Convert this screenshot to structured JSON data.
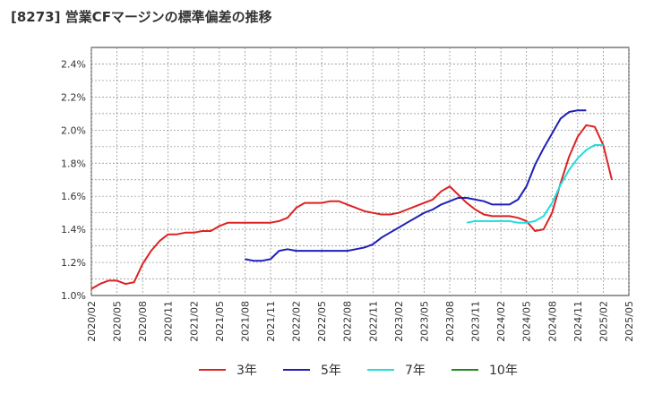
{
  "chart_data": {
    "type": "line",
    "title": "[8273]  営業CFマージンの標準偏差の推移",
    "xlabel": "",
    "ylabel": "",
    "ylim": [
      1.0,
      2.5
    ],
    "yticks": [
      1.0,
      1.2,
      1.4,
      1.6,
      1.8,
      2.0,
      2.2,
      2.4
    ],
    "ytick_labels": [
      "1.0%",
      "1.2%",
      "1.4%",
      "1.6%",
      "1.8%",
      "2.0%",
      "2.2%",
      "2.4%"
    ],
    "xticks": [
      "2020/02",
      "2020/05",
      "2020/08",
      "2020/11",
      "2021/02",
      "2021/05",
      "2021/08",
      "2021/11",
      "2022/02",
      "2022/05",
      "2022/08",
      "2022/11",
      "2023/02",
      "2023/05",
      "2023/08",
      "2023/11",
      "2024/02",
      "2024/05",
      "2024/08",
      "2024/11",
      "2025/02",
      "2025/05"
    ],
    "grid": true,
    "legend_position": "bottom",
    "series": [
      {
        "name": "3年",
        "color": "#dd2222",
        "start": "2020/02",
        "values": [
          1.04,
          1.07,
          1.09,
          1.09,
          1.07,
          1.08,
          1.19,
          1.27,
          1.33,
          1.37,
          1.37,
          1.38,
          1.38,
          1.39,
          1.39,
          1.42,
          1.44,
          1.44,
          1.44,
          1.44,
          1.44,
          1.44,
          1.45,
          1.47,
          1.53,
          1.56,
          1.56,
          1.56,
          1.57,
          1.57,
          1.55,
          1.53,
          1.51,
          1.5,
          1.49,
          1.49,
          1.5,
          1.52,
          1.54,
          1.56,
          1.58,
          1.63,
          1.66,
          1.61,
          1.56,
          1.52,
          1.49,
          1.48,
          1.48,
          1.48,
          1.47,
          1.45,
          1.39,
          1.4,
          1.5,
          1.68,
          1.84,
          1.96,
          2.03,
          2.02,
          1.91,
          1.7
        ]
      },
      {
        "name": "5年",
        "color": "#1f1fb8",
        "start": "2021/08",
        "values": [
          1.22,
          1.21,
          1.21,
          1.22,
          1.27,
          1.28,
          1.27,
          1.27,
          1.27,
          1.27,
          1.27,
          1.27,
          1.27,
          1.28,
          1.29,
          1.31,
          1.35,
          1.38,
          1.41,
          1.44,
          1.47,
          1.5,
          1.52,
          1.55,
          1.57,
          1.59,
          1.59,
          1.58,
          1.57,
          1.55,
          1.55,
          1.55,
          1.58,
          1.66,
          1.79,
          1.89,
          1.98,
          2.07,
          2.11,
          2.12,
          2.12
        ]
      },
      {
        "name": "7年",
        "color": "#22dddd",
        "start": "2023/10",
        "values": [
          1.44,
          1.45,
          1.45,
          1.45,
          1.45,
          1.45,
          1.44,
          1.44,
          1.45,
          1.48,
          1.56,
          1.67,
          1.76,
          1.83,
          1.88,
          1.91,
          1.91
        ]
      },
      {
        "name": "10年",
        "color": "#228822",
        "start": "2025/02",
        "values": []
      }
    ]
  }
}
